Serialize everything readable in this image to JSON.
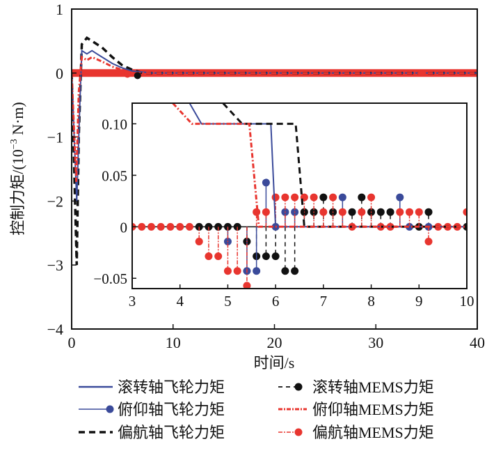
{
  "chart_data": {
    "type": "line",
    "xlabel": "时间/s",
    "ylabel": "控制力矩/(10⁻³ N·m)",
    "ylabel_parts": {
      "main": "控制力矩/(10",
      "sup": "−3",
      "unit": " N·m)"
    },
    "xlim": [
      0,
      40
    ],
    "ylim": [
      -4,
      1
    ],
    "xticks": [
      0,
      10,
      20,
      30,
      40
    ],
    "xtick_labels": [
      "0",
      "10",
      "20",
      "30",
      "40"
    ],
    "yticks": [
      1,
      0,
      -1,
      -2,
      -3,
      -4
    ],
    "ytick_labels": [
      "1",
      "0",
      "−1",
      "−2",
      "−3",
      "−4"
    ],
    "grid": false,
    "legend_position": "bottom",
    "colors": {
      "blue": "#3a4a9a",
      "black": "#111111",
      "red": "#e8352f"
    },
    "series": [
      {
        "name": "滚转轴飞轮力矩",
        "color": "#3a4a9a",
        "style": "solid",
        "x": [
          0,
          0.5,
          0.8,
          1.0,
          1.5,
          2.0,
          2.5,
          3.0,
          4.0,
          5.0,
          6.0,
          8.0,
          12.0,
          40.0
        ],
        "y": [
          0,
          -2.0,
          -0.5,
          0.35,
          0.3,
          0.35,
          0.3,
          0.25,
          0.15,
          0.08,
          0.03,
          0.0,
          0.0,
          0.0
        ]
      },
      {
        "name": "俯仰轴飞轮力矩",
        "color": "#3a4a9a",
        "style": "stem"
      },
      {
        "name": "偏航轴飞轮力矩",
        "color": "#111111",
        "style": "dashed",
        "x": [
          0,
          0.5,
          0.7,
          1.0,
          1.5,
          2.0,
          3.0,
          4.0,
          5.0,
          6.0,
          7.0,
          40.0
        ],
        "y": [
          0,
          -3.0,
          -1.0,
          0.45,
          0.55,
          0.5,
          0.4,
          0.25,
          0.12,
          0.05,
          0.0,
          0.0
        ]
      },
      {
        "name": "滚转轴MEMS力矩",
        "color": "#111111",
        "style": "dashed-stem"
      },
      {
        "name": "俯仰轴MEMS力矩",
        "color": "#e8352f",
        "style": "dashdot",
        "x": [
          0,
          0.45,
          0.7,
          1.0,
          1.5,
          2.0,
          3.0,
          4.0,
          5.0,
          6.0,
          8.0,
          40.0
        ],
        "y": [
          0,
          -1.7,
          -0.3,
          0.25,
          0.2,
          0.25,
          0.18,
          0.1,
          0.05,
          0.0,
          0.0,
          0.0
        ]
      },
      {
        "name": "偏航轴MEMS力矩",
        "color": "#e8352f",
        "style": "dashdot-stem"
      }
    ],
    "inset": {
      "xlim": [
        3,
        10
      ],
      "ylim": [
        -0.06,
        0.12
      ],
      "xticks": [
        3,
        4,
        5,
        6,
        7,
        8,
        9,
        10
      ],
      "xtick_labels": [
        "3",
        "4",
        "5",
        "6",
        "7",
        "8",
        "9",
        "10"
      ],
      "yticks": [
        0.1,
        0.05,
        0,
        -0.05
      ],
      "ytick_labels": [
        "0.10",
        "0.05",
        "0",
        "−0.05"
      ],
      "lines": [
        {
          "name": "滚转轴飞轮力矩",
          "color": "#3a4a9a",
          "style": "solid",
          "x": [
            4.2,
            4.45,
            5.9,
            6.0,
            10.0
          ],
          "y": [
            0.12,
            0.1,
            0.1,
            0.0,
            0.0
          ]
        },
        {
          "name": "偏航轴飞轮力矩",
          "color": "#111111",
          "style": "dashed",
          "x": [
            4.9,
            5.3,
            6.42,
            6.6,
            10.0
          ],
          "y": [
            0.12,
            0.1,
            0.1,
            0.0,
            0.0
          ]
        },
        {
          "name": "俯仰轴MEMS力矩",
          "color": "#e8352f",
          "style": "dashdot",
          "x": [
            3.85,
            4.25,
            5.45,
            5.65,
            10.0
          ],
          "y": [
            0.12,
            0.1,
            0.1,
            0.0,
            0.0
          ]
        }
      ],
      "stem_quantum": 0.0143,
      "stems": [
        {
          "name": "滚转轴MEMS力矩",
          "color": "#111111",
          "style": "dashed",
          "points": [
            [
              4.4,
              0
            ],
            [
              4.6,
              0
            ],
            [
              4.8,
              0
            ],
            [
              5.0,
              0
            ],
            [
              5.2,
              0
            ],
            [
              5.4,
              -1
            ],
            [
              5.6,
              -2
            ],
            [
              5.8,
              -2
            ],
            [
              6.0,
              -2
            ],
            [
              6.2,
              -3
            ],
            [
              6.4,
              -3
            ],
            [
              6.6,
              1
            ],
            [
              6.8,
              1
            ],
            [
              7.0,
              2
            ],
            [
              7.2,
              1
            ],
            [
              7.6,
              1
            ],
            [
              7.8,
              2
            ],
            [
              8.0,
              1
            ],
            [
              8.2,
              1
            ],
            [
              8.4,
              1
            ],
            [
              9.0,
              0
            ],
            [
              9.2,
              1
            ],
            [
              10.0,
              0
            ]
          ]
        },
        {
          "name": "俯仰轴飞轮力矩",
          "color": "#3a4a9a",
          "style": "solid",
          "points": [
            [
              5.0,
              -1
            ],
            [
              5.4,
              -3
            ],
            [
              5.6,
              -3
            ],
            [
              5.8,
              3
            ],
            [
              6.0,
              0
            ],
            [
              6.2,
              1
            ],
            [
              6.4,
              1
            ],
            [
              7.4,
              2
            ],
            [
              8.6,
              2
            ],
            [
              8.8,
              0
            ],
            [
              9.2,
              0
            ]
          ]
        },
        {
          "name": "偏航轴MEMS力矩",
          "color": "#e8352f",
          "style": "dashdot",
          "points": [
            [
              3.0,
              0
            ],
            [
              3.2,
              0
            ],
            [
              3.4,
              0
            ],
            [
              3.6,
              0
            ],
            [
              3.8,
              0
            ],
            [
              4.0,
              0
            ],
            [
              4.2,
              0
            ],
            [
              4.4,
              -1
            ],
            [
              4.6,
              -2
            ],
            [
              4.8,
              -2
            ],
            [
              5.0,
              -3
            ],
            [
              5.2,
              -3
            ],
            [
              5.4,
              -4
            ],
            [
              5.6,
              1
            ],
            [
              5.8,
              1
            ],
            [
              6.0,
              2
            ],
            [
              6.2,
              2
            ],
            [
              6.4,
              2
            ],
            [
              6.6,
              2
            ],
            [
              6.8,
              2
            ],
            [
              7.0,
              1
            ],
            [
              7.2,
              2
            ],
            [
              7.4,
              1
            ],
            [
              7.6,
              0
            ],
            [
              7.8,
              1
            ],
            [
              8.0,
              2
            ],
            [
              8.2,
              0
            ],
            [
              8.4,
              0
            ],
            [
              8.6,
              1
            ],
            [
              8.8,
              1
            ],
            [
              9.0,
              1
            ],
            [
              9.2,
              -1
            ],
            [
              9.4,
              0
            ],
            [
              9.6,
              0
            ],
            [
              9.8,
              0
            ],
            [
              10.0,
              1
            ]
          ]
        }
      ]
    }
  }
}
